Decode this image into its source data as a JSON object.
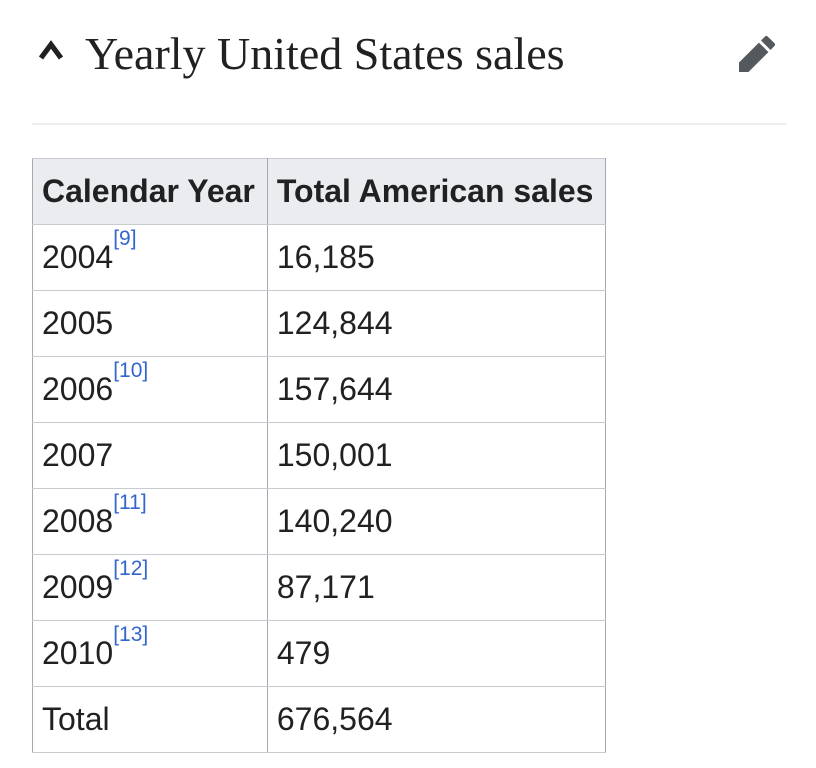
{
  "section": {
    "title": "Yearly United States sales",
    "collapse_icon": "chevron-up",
    "edit_icon": "pencil"
  },
  "table": {
    "headers": [
      "Calendar Year",
      "Total American sales"
    ],
    "rows": [
      {
        "year": "2004",
        "ref": "[9]",
        "sales": "16,185"
      },
      {
        "year": "2005",
        "ref": "",
        "sales": "124,844"
      },
      {
        "year": "2006",
        "ref": "[10]",
        "sales": "157,644"
      },
      {
        "year": "2007",
        "ref": "",
        "sales": "150,001"
      },
      {
        "year": "2008",
        "ref": "[11]",
        "sales": "140,240"
      },
      {
        "year": "2009",
        "ref": "[12]",
        "sales": "87,171"
      },
      {
        "year": "2010",
        "ref": "[13]",
        "sales": "479"
      },
      {
        "year": "Total",
        "ref": "",
        "sales": "676,564"
      }
    ]
  },
  "colors": {
    "heading_text": "#202122",
    "body_text": "#202122",
    "link_blue": "#3366cc",
    "table_header_bg": "#eaecf0",
    "table_border_vertical": "#a2a9b1",
    "table_border_horizontal": "#c8ccd1",
    "divider": "#eaecf0",
    "icon_gray": "#54595d"
  }
}
